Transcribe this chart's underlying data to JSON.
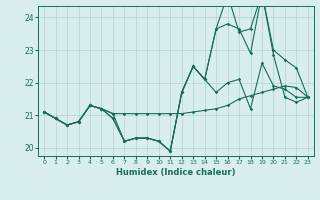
{
  "xlabel": "Humidex (Indice chaleur)",
  "bg_color": "#d8eeec",
  "grid_color": "#b8d8d5",
  "line_color": "#1a6b5a",
  "xlim": [
    -0.5,
    23.5
  ],
  "ylim": [
    19.75,
    24.35
  ],
  "yticks": [
    20,
    21,
    22,
    23,
    24
  ],
  "xticks": [
    0,
    1,
    2,
    3,
    4,
    5,
    6,
    7,
    8,
    9,
    10,
    11,
    12,
    13,
    14,
    15,
    16,
    17,
    18,
    19,
    20,
    21,
    22,
    23
  ],
  "line1_x": [
    0,
    1,
    2,
    3,
    4,
    5,
    6,
    7,
    8,
    9,
    10,
    11,
    12,
    13,
    14,
    15,
    16,
    17,
    18,
    19,
    20,
    21,
    22,
    23
  ],
  "line1_y": [
    21.1,
    20.9,
    20.7,
    20.8,
    21.3,
    21.2,
    20.9,
    20.2,
    20.3,
    20.3,
    20.2,
    19.9,
    21.7,
    22.5,
    22.1,
    21.7,
    22.0,
    22.1,
    21.2,
    22.6,
    21.9,
    21.8,
    21.55,
    21.55
  ],
  "line2_x": [
    0,
    1,
    2,
    3,
    4,
    5,
    6,
    7,
    8,
    9,
    10,
    11,
    12,
    13,
    14,
    15,
    16,
    17,
    18,
    19,
    20,
    21,
    22,
    23
  ],
  "line2_y": [
    21.1,
    20.9,
    20.7,
    20.8,
    21.3,
    21.2,
    21.05,
    21.05,
    21.05,
    21.05,
    21.05,
    21.05,
    21.05,
    21.1,
    21.15,
    21.2,
    21.3,
    21.5,
    21.6,
    21.7,
    21.8,
    21.9,
    21.85,
    21.55
  ],
  "line3_x": [
    0,
    1,
    2,
    3,
    4,
    5,
    6,
    7,
    8,
    9,
    10,
    11,
    12,
    13,
    14,
    15,
    16,
    17,
    18,
    19,
    20,
    21,
    22,
    23
  ],
  "line3_y": [
    21.1,
    20.9,
    20.7,
    20.8,
    21.3,
    21.2,
    21.05,
    20.2,
    20.3,
    20.3,
    20.2,
    19.9,
    21.7,
    22.5,
    22.1,
    23.65,
    23.8,
    23.65,
    22.9,
    24.75,
    23.0,
    22.7,
    22.45,
    21.55
  ],
  "line4_x": [
    0,
    1,
    2,
    3,
    4,
    5,
    6,
    7,
    8,
    9,
    10,
    11,
    12,
    13,
    14,
    15,
    16,
    17,
    18,
    19,
    20,
    21,
    22,
    23
  ],
  "line4_y": [
    21.1,
    20.9,
    20.7,
    20.8,
    21.3,
    21.2,
    20.9,
    20.2,
    20.3,
    20.3,
    20.2,
    19.9,
    21.7,
    22.5,
    22.1,
    23.65,
    24.7,
    23.55,
    23.65,
    24.75,
    22.85,
    21.55,
    21.4,
    21.55
  ]
}
